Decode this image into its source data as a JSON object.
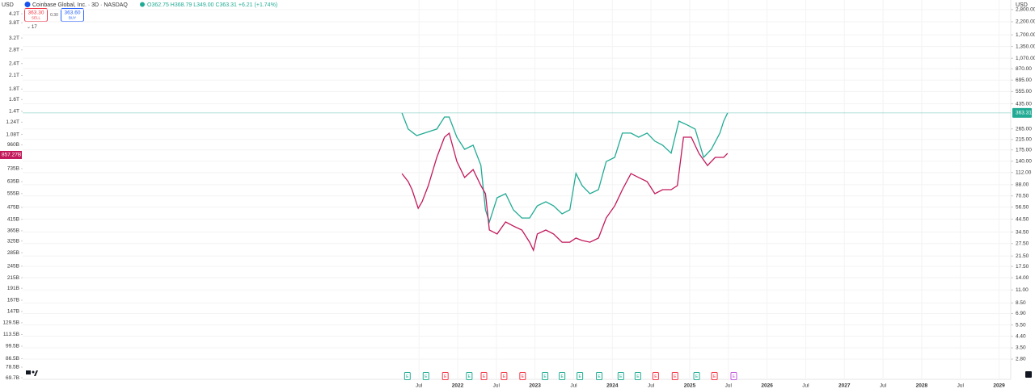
{
  "header": {
    "currency": "USD",
    "title": "Coinbase Global, Inc. · 3D · NASDAQ",
    "ohlc": "O362.75 H368.79 L349.00 C363.31 +6.21 (+1.74%)",
    "sell_price": "363.30",
    "sell_label": "SELL",
    "spread": "0.30",
    "buy_price": "363.60",
    "buy_label": "BUY",
    "indicators": "17",
    "right_currency": "USD"
  },
  "chart_data": {
    "type": "line",
    "log_scale": true,
    "grid": true,
    "xlim": [
      2016.71,
      2029.13
    ],
    "xticks": [
      {
        "value": 2021.5,
        "label": "Jul"
      },
      2022,
      {
        "value": 2022.5,
        "label": "Jul"
      },
      2023,
      {
        "value": 2023.5,
        "label": "Jul"
      },
      2024,
      {
        "value": 2024.5,
        "label": "Jul"
      },
      2025,
      {
        "value": 2025.5,
        "label": "Jul"
      },
      2026,
      {
        "value": 2026.5,
        "label": "Jul"
      },
      2027,
      {
        "value": 2027.5,
        "label": "Jul"
      },
      2028,
      {
        "value": 2028.5,
        "label": "Jul"
      },
      2029
    ],
    "ylim": [
      1.88,
      3383
    ],
    "yticks": [
      {
        "value": 2800,
        "label": "2,800.00"
      },
      {
        "value": 2200,
        "label": "2,200.00"
      },
      {
        "value": 1700,
        "label": "1,700.00"
      },
      {
        "value": 1350,
        "label": "1,350.00"
      },
      {
        "value": 1070,
        "label": "1,070.00"
      },
      {
        "value": 870,
        "label": "870.00"
      },
      {
        "value": 695,
        "label": "695.00"
      },
      {
        "value": 555,
        "label": "555.00"
      },
      {
        "value": 435,
        "label": "435.00"
      },
      {
        "value": 265,
        "label": "265.00"
      },
      {
        "value": 215,
        "label": "215.00"
      },
      {
        "value": 175,
        "label": "175.00"
      },
      {
        "value": 140,
        "label": "140.00"
      },
      {
        "value": 112,
        "label": "112.00"
      },
      {
        "value": 88,
        "label": "88.00"
      },
      {
        "value": 70.5,
        "label": "70.50"
      },
      {
        "value": 56.5,
        "label": "56.50"
      },
      {
        "value": 44.5,
        "label": "44.50"
      },
      {
        "value": 34.5,
        "label": "34.50"
      },
      {
        "value": 27.5,
        "label": "27.50"
      },
      {
        "value": 21.5,
        "label": "21.50"
      },
      {
        "value": 17.5,
        "label": "17.50"
      },
      {
        "value": 14,
        "label": "14.00"
      },
      {
        "value": 11,
        "label": "11.00"
      },
      {
        "value": 8.5,
        "label": "8.50"
      },
      {
        "value": 6.9,
        "label": "6.90"
      },
      {
        "value": 5.5,
        "label": "5.50"
      },
      {
        "value": 4.4,
        "label": "4.40"
      },
      {
        "value": 3.5,
        "label": "3.50"
      },
      {
        "value": 2.8,
        "label": "2.80"
      }
    ],
    "y2lim": [
      68.5,
      4908
    ],
    "y2ticks": [
      {
        "value": 4200,
        "label": "4.2T"
      },
      {
        "value": 3800,
        "label": "3.8T"
      },
      {
        "value": 3200,
        "label": "3.2T"
      },
      {
        "value": 2800,
        "label": "2.8T"
      },
      {
        "value": 2400,
        "label": "2.4T"
      },
      {
        "value": 2100,
        "label": "2.1T"
      },
      {
        "value": 1800,
        "label": "1.8T"
      },
      {
        "value": 1600,
        "label": "1.6T"
      },
      {
        "value": 1400,
        "label": "1.4T"
      },
      {
        "value": 1240,
        "label": "1.24T"
      },
      {
        "value": 1080,
        "label": "1.08T"
      },
      {
        "value": 960,
        "label": "960B"
      },
      {
        "value": 735,
        "label": "735B"
      },
      {
        "value": 635,
        "label": "635B"
      },
      {
        "value": 555,
        "label": "555B"
      },
      {
        "value": 475,
        "label": "475B"
      },
      {
        "value": 415,
        "label": "415B"
      },
      {
        "value": 365,
        "label": "365B"
      },
      {
        "value": 325,
        "label": "325B"
      },
      {
        "value": 285,
        "label": "285B"
      },
      {
        "value": 245,
        "label": "245B"
      },
      {
        "value": 215,
        "label": "215B"
      },
      {
        "value": 191,
        "label": "191B"
      },
      {
        "value": 167,
        "label": "167B"
      },
      {
        "value": 147,
        "label": "147B"
      },
      {
        "value": 129.5,
        "label": "129.5B"
      },
      {
        "value": 113.5,
        "label": "113.5B"
      },
      {
        "value": 99.5,
        "label": "99.5B"
      },
      {
        "value": 86.5,
        "label": "86.5B"
      },
      {
        "value": 78.5,
        "label": "78.5B"
      },
      {
        "value": 69.7,
        "label": "69.7B"
      }
    ],
    "current_price": 363.31,
    "current_price_color": "#22ab94",
    "y2_current": {
      "value": 857.27,
      "label": "857.27B"
    },
    "y2_current_color": "#c2185b",
    "series": [
      {
        "color": "#22ab94",
        "x": [
          2021.28,
          2021.36,
          2021.47,
          2021.57,
          2021.73,
          2021.83,
          2021.89,
          2021.99,
          2022.09,
          2022.2,
          2022.3,
          2022.36,
          2022.41,
          2022.51,
          2022.62,
          2022.72,
          2022.83,
          2022.93,
          2023.03,
          2023.14,
          2023.24,
          2023.35,
          2023.45,
          2023.53,
          2023.61,
          2023.71,
          2023.82,
          2023.92,
          2024.03,
          2024.13,
          2024.24,
          2024.34,
          2024.45,
          2024.55,
          2024.65,
          2024.76,
          2024.86,
          2024.97,
          2025.07,
          2025.18,
          2025.28,
          2025.39,
          2025.44,
          2025.49
        ],
        "values": [
          363,
          264,
          232,
          244,
          264,
          335,
          335,
          225,
          177,
          192,
          129,
          53.5,
          42.1,
          68,
          73.6,
          53.5,
          45.6,
          45.6,
          58,
          62.8,
          58,
          49.4,
          53.5,
          110,
          86.3,
          73.6,
          79.8,
          139,
          151,
          244,
          244,
          225,
          244,
          208,
          192,
          164,
          309,
          286,
          264,
          151,
          177,
          244,
          309,
          363
        ]
      },
      {
        "color": "#c2185b",
        "axis": "y2",
        "x": [
          2021.28,
          2021.36,
          2021.41,
          2021.49,
          2021.54,
          2021.62,
          2021.73,
          2021.83,
          2021.89,
          2021.99,
          2022.09,
          2022.2,
          2022.3,
          2022.36,
          2022.41,
          2022.51,
          2022.62,
          2022.72,
          2022.83,
          2022.93,
          2022.98,
          2023.03,
          2023.14,
          2023.24,
          2023.35,
          2023.45,
          2023.53,
          2023.61,
          2023.71,
          2023.82,
          2023.92,
          2024.03,
          2024.13,
          2024.24,
          2024.34,
          2024.45,
          2024.55,
          2024.65,
          2024.76,
          2024.84,
          2024.92,
          2025.02,
          2025.12,
          2025.23,
          2025.33,
          2025.44,
          2025.49
        ],
        "values": [
          695,
          635,
          580,
          470,
          506,
          607,
          834,
          1047,
          1095,
          797,
          665,
          727,
          607,
          554,
          368,
          352,
          403,
          385,
          368,
          321,
          293,
          352,
          368,
          352,
          321,
          321,
          336,
          327,
          321,
          336,
          422,
          483,
          580,
          695,
          665,
          635,
          554,
          580,
          580,
          607,
          1047,
          1047,
          872,
          761,
          834,
          834,
          872
        ]
      }
    ],
    "events": [
      {
        "x": 2021.35,
        "label": "E",
        "color": "#22ab94"
      },
      {
        "x": 2021.59,
        "label": "E",
        "color": "#22ab94"
      },
      {
        "x": 2021.84,
        "label": "E",
        "color": "#f23645"
      },
      {
        "x": 2022.15,
        "label": "E",
        "color": "#22ab94"
      },
      {
        "x": 2022.34,
        "label": "E",
        "color": "#f23645"
      },
      {
        "x": 2022.6,
        "label": "E",
        "color": "#f23645"
      },
      {
        "x": 2022.84,
        "label": "E",
        "color": "#f23645"
      },
      {
        "x": 2023.13,
        "label": "E",
        "color": "#22ab94"
      },
      {
        "x": 2023.35,
        "label": "E",
        "color": "#22ab94"
      },
      {
        "x": 2023.58,
        "label": "E",
        "color": "#22ab94"
      },
      {
        "x": 2023.83,
        "label": "E",
        "color": "#22ab94"
      },
      {
        "x": 2024.11,
        "label": "E",
        "color": "#22ab94"
      },
      {
        "x": 2024.33,
        "label": "E",
        "color": "#22ab94"
      },
      {
        "x": 2024.56,
        "label": "E",
        "color": "#f23645"
      },
      {
        "x": 2024.81,
        "label": "E",
        "color": "#f23645"
      },
      {
        "x": 2025.09,
        "label": "E",
        "color": "#22ab94"
      },
      {
        "x": 2025.32,
        "label": "E",
        "color": "#f23645"
      },
      {
        "x": 2025.57,
        "label": "E",
        "color": "#c158dc"
      }
    ]
  }
}
